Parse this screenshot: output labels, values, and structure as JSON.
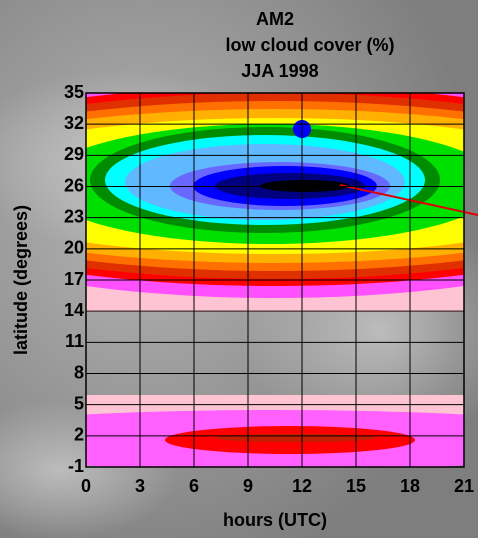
{
  "chart_data": {
    "type": "contour",
    "title": "AM2",
    "subtitle": "low cloud cover (%)",
    "period": "JJA 1998",
    "xlabel": "hours (UTC)",
    "ylabel": "latitude (degrees)",
    "xlim": [
      0,
      21
    ],
    "xticks": [
      0,
      3,
      6,
      9,
      12,
      15,
      18,
      21
    ],
    "ylim": [
      -1,
      35
    ],
    "yticks": [
      -1,
      2,
      5,
      8,
      11,
      14,
      17,
      20,
      23,
      26,
      29,
      32,
      35
    ],
    "grid": true
  }
}
